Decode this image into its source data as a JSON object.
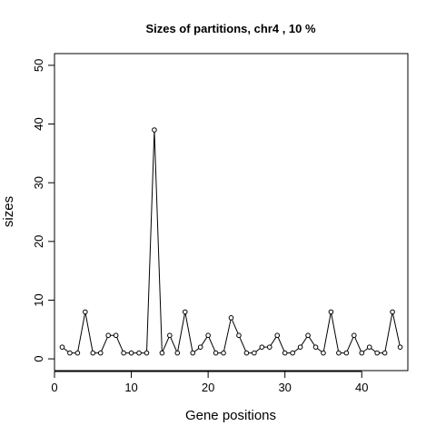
{
  "chart_data": {
    "type": "line",
    "title": "Sizes of partitions, chr4 , 10 %",
    "xlabel": "Gene positions",
    "ylabel": "sizes",
    "xlim": [
      0,
      46
    ],
    "ylim": [
      -2,
      52
    ],
    "x_ticks": [
      0,
      10,
      20,
      30,
      40
    ],
    "y_ticks": [
      0,
      10,
      20,
      30,
      40,
      50
    ],
    "grid": false,
    "markers": "open-circle",
    "series": [
      {
        "x": [
          1,
          2,
          3,
          4,
          5,
          6,
          7,
          8,
          9,
          10,
          11,
          12,
          13,
          14,
          15,
          16,
          17,
          18,
          19,
          20,
          21,
          22,
          23,
          24,
          25,
          26,
          27,
          28,
          29,
          30,
          31,
          32,
          33,
          34,
          35,
          36,
          37,
          38,
          39,
          40,
          41,
          42,
          43,
          44,
          45
        ],
        "values": [
          2,
          1,
          1,
          8,
          1,
          1,
          4,
          4,
          1,
          1,
          1,
          1,
          39,
          1,
          4,
          1,
          8,
          1,
          2,
          4,
          1,
          1,
          7,
          4,
          1,
          1,
          2,
          2,
          4,
          1,
          1,
          2,
          4,
          2,
          1,
          8,
          1,
          1,
          4,
          1,
          2,
          1,
          1,
          8,
          2
        ]
      }
    ]
  }
}
